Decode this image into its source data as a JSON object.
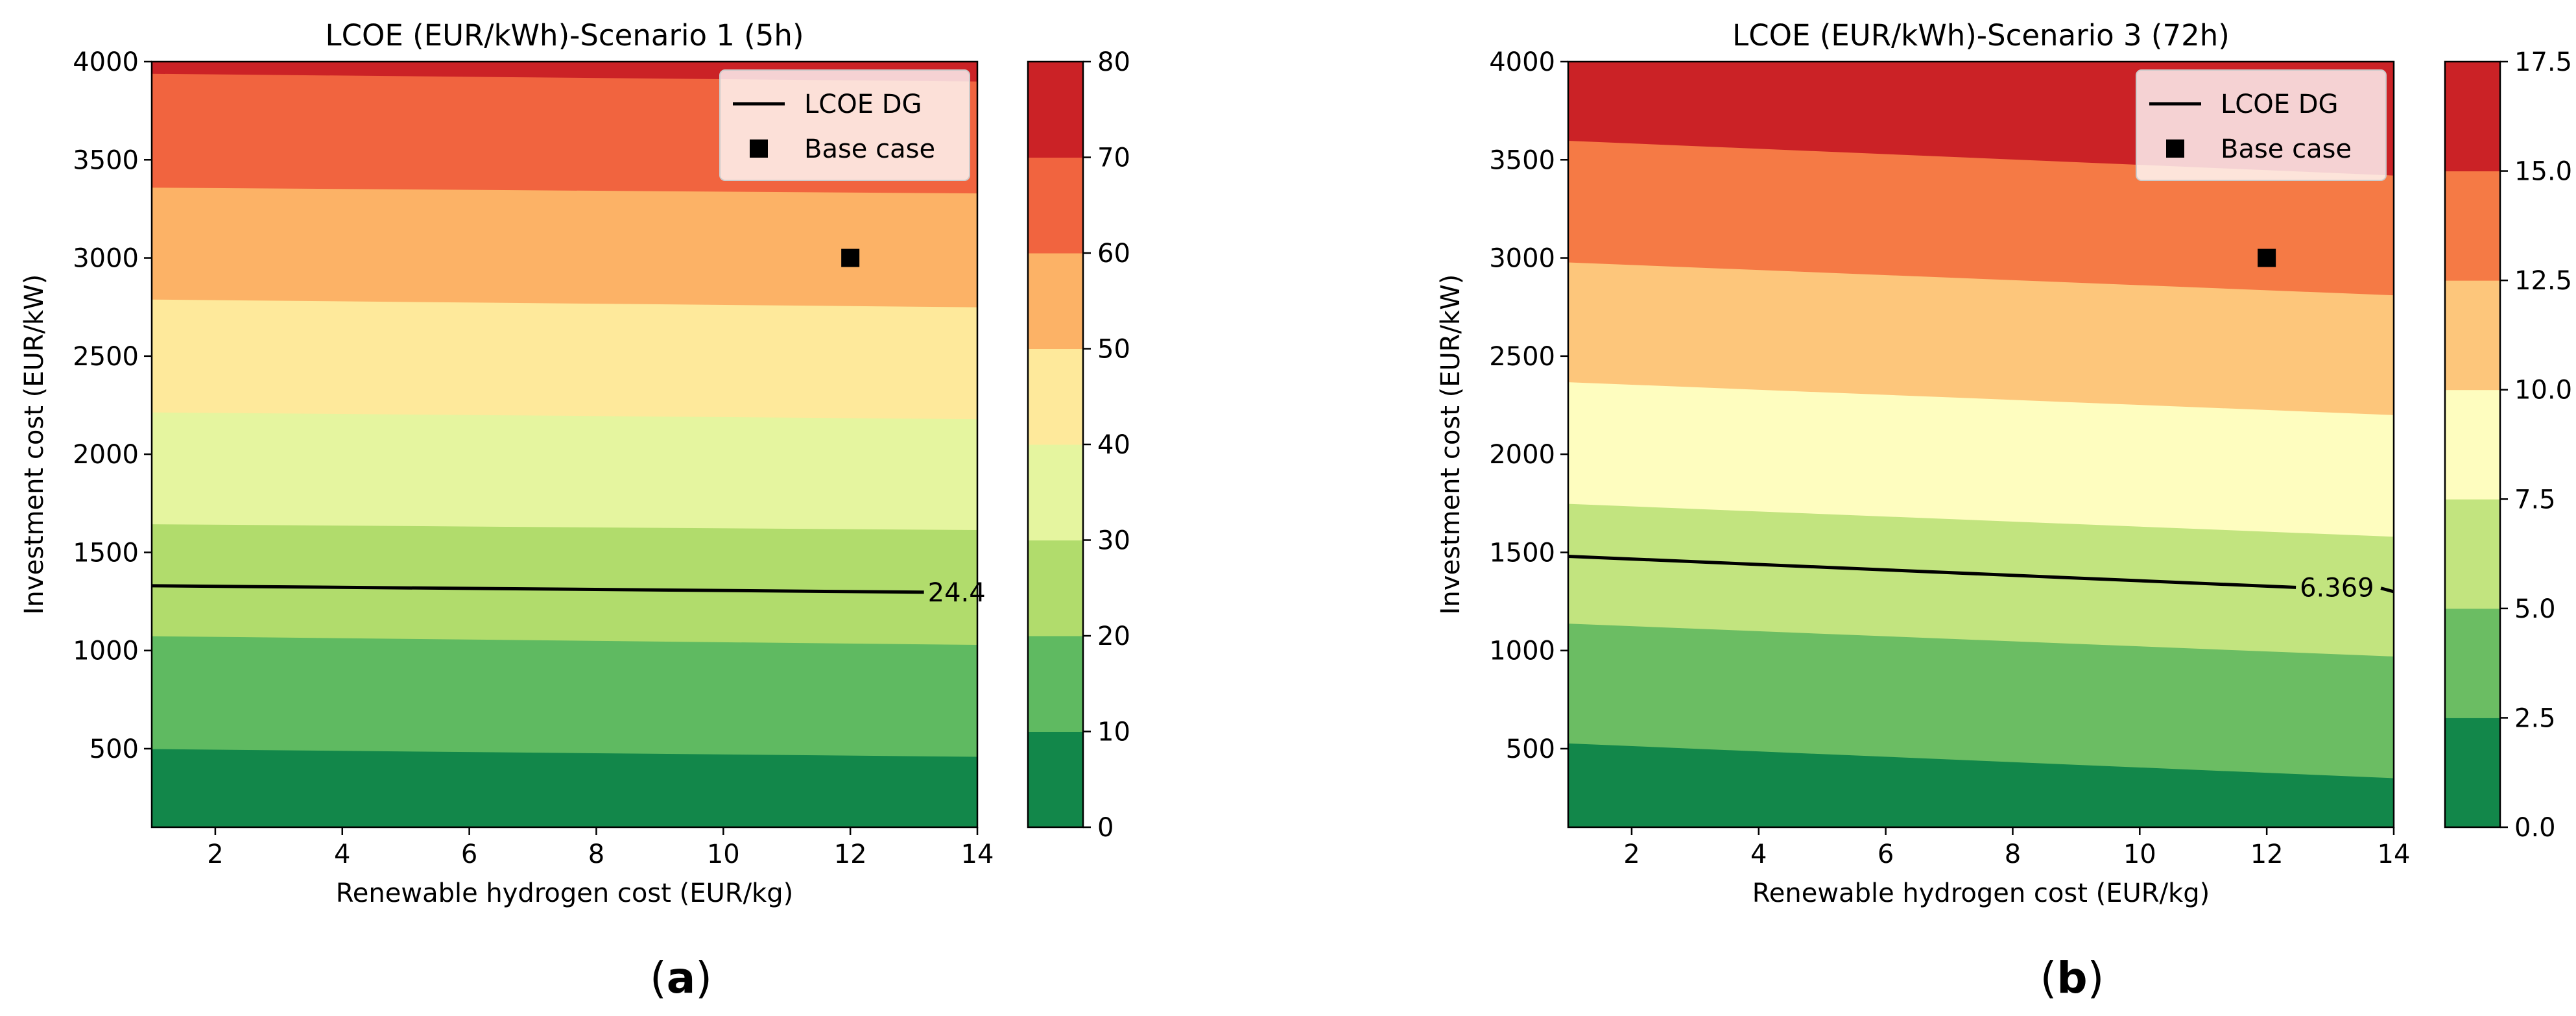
{
  "chart_data": [
    {
      "type": "heatmap",
      "subtype": "filled-contour",
      "panel_label": "(a)",
      "title": "LCOE (EUR/kWh)-Scenario 1 (5h)",
      "xlabel": "Renewable hydrogen cost (EUR/kg)",
      "ylabel": "Investment cost (EUR/kW)",
      "xlim": [
        1,
        14
      ],
      "ylim": [
        100,
        4000
      ],
      "x_ticks": [
        2,
        4,
        6,
        8,
        10,
        12,
        14
      ],
      "y_ticks": [
        500,
        1000,
        1500,
        2000,
        2500,
        3000,
        3500,
        4000
      ],
      "x_tick_labels": [
        "2",
        "4",
        "6",
        "8",
        "10",
        "12",
        "14"
      ],
      "y_tick_labels": [
        "500",
        "1000",
        "1500",
        "2000",
        "2500",
        "3000",
        "3500",
        "4000"
      ],
      "colorbar": {
        "levels": [
          0,
          10,
          20,
          30,
          40,
          50,
          60,
          70,
          80
        ],
        "tick_labels": [
          "0",
          "10",
          "20",
          "30",
          "40",
          "50",
          "60",
          "70",
          "80"
        ],
        "colors": [
          "#12874a",
          "#5fba61",
          "#b1dc6c",
          "#e5f59f",
          "#fee99b",
          "#fcb266",
          "#f1643f",
          "#cb2226"
        ]
      },
      "boundaries": [
        {
          "value": 10,
          "y_at_xmin": 500,
          "y_at_xmax": 460
        },
        {
          "value": 20,
          "y_at_xmin": 1075,
          "y_at_xmax": 1030
        },
        {
          "value": 30,
          "y_at_xmin": 1645,
          "y_at_xmax": 1615
        },
        {
          "value": 40,
          "y_at_xmin": 2215,
          "y_at_xmax": 2180
        },
        {
          "value": 50,
          "y_at_xmin": 2790,
          "y_at_xmax": 2750
        },
        {
          "value": 60,
          "y_at_xmin": 3360,
          "y_at_xmax": 3330
        },
        {
          "value": 70,
          "y_at_xmin": 3940,
          "y_at_xmax": 3900
        }
      ],
      "lcoe_dg_line": {
        "label": "24.4",
        "y_at_xmin": 1330,
        "y_at_xmax": 1295,
        "label_x": 13.2
      },
      "base_case": {
        "x": 12,
        "y": 3000
      },
      "legend": {
        "position": "top-right",
        "entries": [
          "LCOE DG",
          "Base case"
        ]
      }
    },
    {
      "type": "heatmap",
      "subtype": "filled-contour",
      "panel_label": "(b)",
      "title": "LCOE (EUR/kWh)-Scenario 3 (72h)",
      "xlabel": "Renewable hydrogen cost (EUR/kg)",
      "ylabel": "Investment cost (EUR/kW)",
      "xlim": [
        1,
        14
      ],
      "ylim": [
        100,
        4000
      ],
      "x_ticks": [
        2,
        4,
        6,
        8,
        10,
        12,
        14
      ],
      "y_ticks": [
        500,
        1000,
        1500,
        2000,
        2500,
        3000,
        3500,
        4000
      ],
      "x_tick_labels": [
        "2",
        "4",
        "6",
        "8",
        "10",
        "12",
        "14"
      ],
      "y_tick_labels": [
        "500",
        "1000",
        "1500",
        "2000",
        "2500",
        "3000",
        "3500",
        "4000"
      ],
      "colorbar": {
        "levels": [
          0,
          2.5,
          5.0,
          7.5,
          10.0,
          12.5,
          15.0,
          17.5
        ],
        "tick_labels": [
          "0.0",
          "2.5",
          "5.0",
          "7.5",
          "10.0",
          "12.5",
          "15.0",
          "17.5"
        ],
        "colors": [
          "#12874a",
          "#6bbd63",
          "#c2e47f",
          "#fefdbf",
          "#fdc67b",
          "#f57a45",
          "#cb2226"
        ]
      },
      "boundaries": [
        {
          "value": 2.5,
          "y_at_xmin": 530,
          "y_at_xmax": 350
        },
        {
          "value": 5.0,
          "y_at_xmin": 1140,
          "y_at_xmax": 970
        },
        {
          "value": 7.5,
          "y_at_xmin": 1750,
          "y_at_xmax": 1580
        },
        {
          "value": 10.0,
          "y_at_xmin": 2370,
          "y_at_xmax": 2200
        },
        {
          "value": 12.5,
          "y_at_xmin": 2980,
          "y_at_xmax": 2810
        },
        {
          "value": 15.0,
          "y_at_xmin": 3600,
          "y_at_xmax": 3420
        }
      ],
      "lcoe_dg_line": {
        "label": "6.369",
        "y_at_xmin": 1480,
        "y_at_xmax": 1300,
        "label_x": 12.5
      },
      "base_case": {
        "x": 12,
        "y": 3000
      },
      "legend": {
        "position": "top-right",
        "entries": [
          "LCOE DG",
          "Base case"
        ]
      }
    }
  ]
}
